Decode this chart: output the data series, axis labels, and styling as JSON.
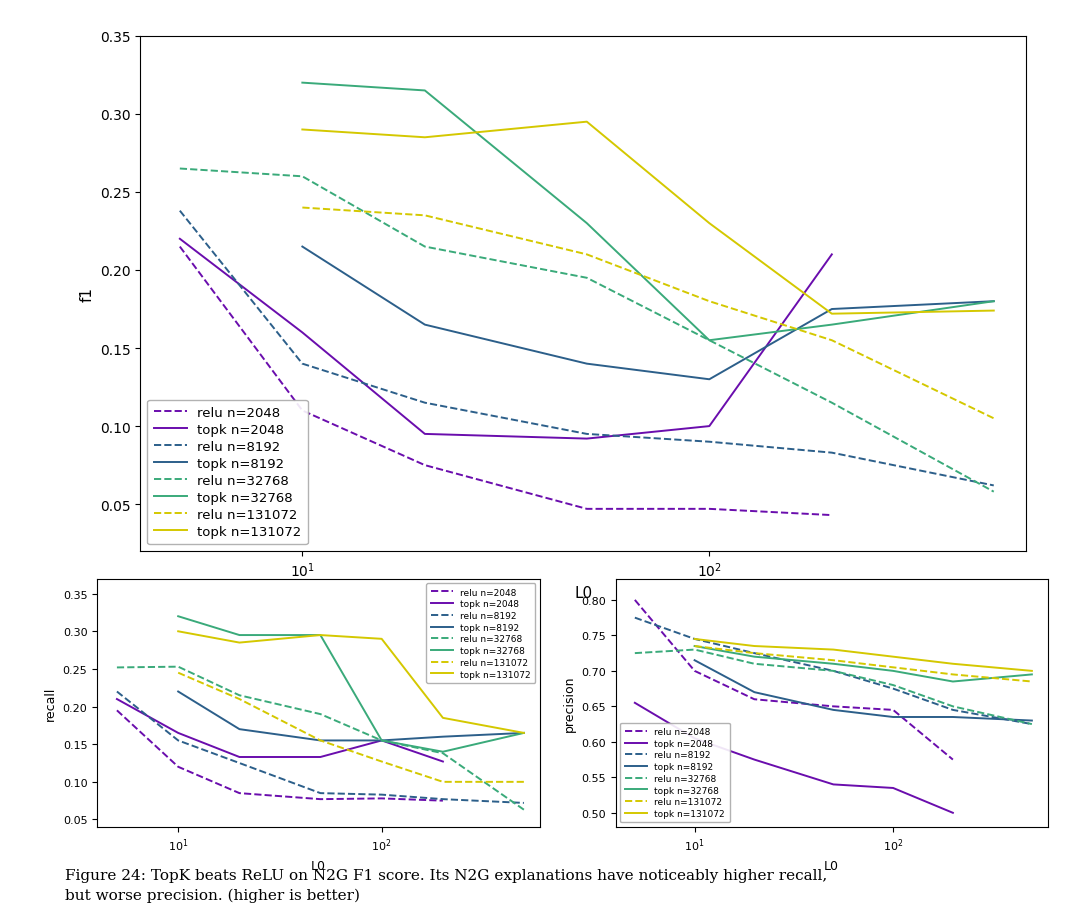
{
  "colors": {
    "n2048": "#6a0dad",
    "n8192": "#2c5f8a",
    "n32768": "#3aaa7a",
    "n131072": "#d4c800"
  },
  "f1": {
    "relu_2048": [
      0.215,
      0.11,
      0.075,
      0.047,
      0.047,
      0.043,
      null
    ],
    "topk_2048": [
      0.22,
      0.16,
      0.095,
      0.092,
      0.1,
      0.21,
      null
    ],
    "relu_8192": [
      0.238,
      0.14,
      0.115,
      0.095,
      0.09,
      0.083,
      0.062
    ],
    "topk_8192": [
      null,
      0.215,
      0.165,
      0.14,
      0.13,
      0.175,
      0.18
    ],
    "relu_32768": [
      0.265,
      0.26,
      0.215,
      0.195,
      0.155,
      0.115,
      0.058
    ],
    "topk_32768": [
      null,
      0.32,
      0.315,
      0.23,
      0.155,
      0.165,
      0.18
    ],
    "relu_131072": [
      null,
      0.24,
      0.235,
      0.21,
      0.18,
      0.155,
      0.105
    ],
    "topk_131072": [
      null,
      0.29,
      0.285,
      0.295,
      0.23,
      0.172,
      0.174
    ]
  },
  "recall": {
    "relu_2048": [
      0.195,
      0.12,
      0.085,
      0.077,
      0.078,
      0.075,
      null
    ],
    "topk_2048": [
      0.21,
      0.165,
      0.133,
      0.133,
      0.155,
      0.127,
      null
    ],
    "relu_8192": [
      0.22,
      0.155,
      0.125,
      0.085,
      0.083,
      0.077,
      0.072
    ],
    "topk_8192": [
      null,
      0.22,
      0.17,
      0.155,
      0.155,
      0.16,
      0.165
    ],
    "relu_32768": [
      0.252,
      0.253,
      0.215,
      0.19,
      0.155,
      0.138,
      0.063
    ],
    "topk_32768": [
      null,
      0.32,
      0.295,
      0.295,
      0.155,
      0.14,
      0.165
    ],
    "relu_131072": [
      null,
      0.245,
      0.21,
      0.155,
      0.127,
      0.1,
      0.1
    ],
    "topk_131072": [
      null,
      0.3,
      0.285,
      0.295,
      0.29,
      0.185,
      0.165
    ]
  },
  "precision": {
    "relu_2048": [
      0.8,
      0.7,
      0.66,
      0.65,
      0.645,
      0.575,
      null
    ],
    "topk_2048": [
      0.655,
      0.605,
      0.575,
      0.54,
      0.535,
      0.5,
      null
    ],
    "relu_8192": [
      0.775,
      0.745,
      0.725,
      0.7,
      0.675,
      0.645,
      0.625
    ],
    "topk_8192": [
      null,
      0.715,
      0.67,
      0.645,
      0.635,
      0.635,
      0.63
    ],
    "relu_32768": [
      0.725,
      0.73,
      0.71,
      0.7,
      0.68,
      0.65,
      0.625
    ],
    "topk_32768": [
      null,
      0.735,
      0.72,
      0.71,
      0.7,
      0.685,
      0.695
    ],
    "relu_131072": [
      null,
      0.735,
      0.725,
      0.715,
      0.705,
      0.695,
      0.685
    ],
    "topk_131072": [
      null,
      0.745,
      0.735,
      0.73,
      0.72,
      0.71,
      0.7
    ]
  },
  "x_vals": [
    5,
    10,
    20,
    50,
    100,
    200,
    500
  ],
  "caption": "Figure 24: TopK beats ReLU on N2G F1 score. Its N2G explanations have noticeably higher recall,\nbut worse precision. (higher is better)"
}
